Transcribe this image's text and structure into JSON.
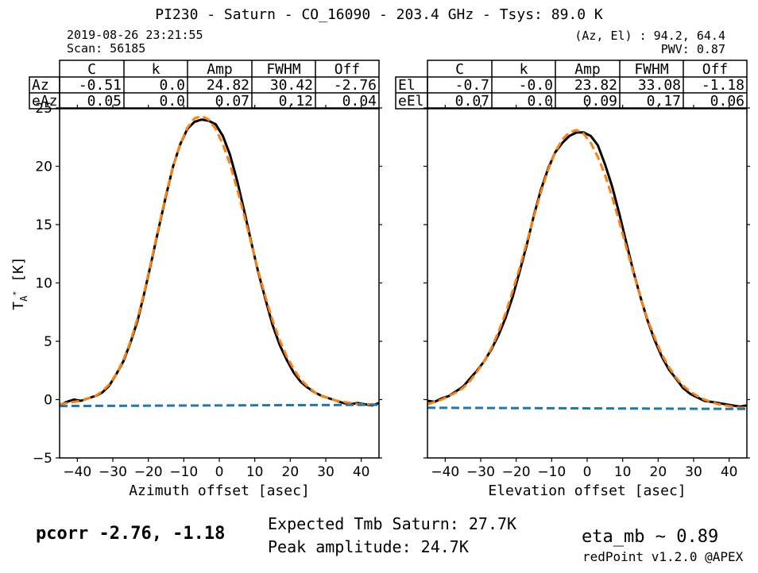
{
  "header": {
    "title": "PI230 - Saturn - CO_16090 - 203.4 GHz - Tsys: 89.0 K",
    "date": "2019-08-26 23:21:55",
    "scan": "Scan: 56185",
    "azel": "(Az, El) : 94.2, 64.4",
    "pwv": "PWV: 0.87"
  },
  "footer": {
    "pcorr": "pcorr -2.76, -1.18",
    "expected_tmb": "Expected Tmb Saturn: 27.7K",
    "peak_amplitude": "Peak amplitude: 24.7K",
    "eta_mb": "eta_mb ~ 0.89",
    "version": "redPoint v1.2.0 @APEX"
  },
  "ylabel_main": "T",
  "ylabel_sub": "A",
  "ylabel_sup": "*",
  "ylabel_unit": "[K]",
  "tables": [
    {
      "columns": [
        "C",
        "k",
        "Amp",
        "FWHM",
        "Off"
      ],
      "rows": [
        {
          "label": "Az",
          "values": [
            "-0.51",
            "0.0",
            "24.82",
            "30.42",
            "-2.76"
          ]
        },
        {
          "label": "eAz",
          "values": [
            "0.05",
            "0.0",
            "0.07",
            "0.12",
            "0.04"
          ]
        }
      ]
    },
    {
      "columns": [
        "C",
        "k",
        "Amp",
        "FWHM",
        "Off"
      ],
      "rows": [
        {
          "label": "El",
          "values": [
            "-0.7",
            "-0.0",
            "23.82",
            "33.08",
            "-1.18"
          ]
        },
        {
          "label": "eEl",
          "values": [
            "0.07",
            "0.0",
            "0.09",
            "0.17",
            "0.06"
          ]
        }
      ]
    }
  ],
  "chart_data": [
    {
      "type": "line",
      "xlabel": "Azimuth offset [asec]",
      "ylabel": "T_A* [K]",
      "xlim": [
        -45,
        45
      ],
      "ylim": [
        -5,
        25
      ],
      "xticks": [
        -40,
        -30,
        -20,
        -10,
        0,
        10,
        20,
        30,
        40
      ],
      "yticks": [
        -5,
        0,
        5,
        10,
        15,
        20,
        25
      ],
      "colors": {
        "data": "#000000",
        "fit": "#ff7f0e",
        "baseline": "#1f77b4"
      },
      "series": [
        {
          "role": "data",
          "style": "solid",
          "x": [
            -45,
            -43,
            -41,
            -39,
            -37,
            -35,
            -33,
            -31,
            -29,
            -27,
            -25,
            -23,
            -21,
            -19,
            -17,
            -15,
            -13,
            -11,
            -9,
            -7,
            -5,
            -3,
            -1,
            1,
            3,
            5,
            7,
            9,
            11,
            13,
            15,
            17,
            19,
            21,
            23,
            25,
            27,
            29,
            31,
            33,
            35,
            37,
            39,
            41,
            43,
            45
          ],
          "y": [
            -0.5,
            -0.2,
            0.0,
            -0.1,
            0.1,
            0.3,
            0.6,
            1.2,
            2.2,
            3.3,
            4.9,
            6.8,
            9.3,
            12.0,
            14.8,
            17.5,
            20.0,
            21.9,
            23.2,
            23.8,
            24.0,
            23.9,
            23.6,
            22.6,
            21.0,
            18.8,
            16.2,
            13.5,
            10.9,
            8.6,
            6.4,
            4.7,
            3.4,
            2.3,
            1.5,
            1.0,
            0.6,
            0.3,
            0.1,
            -0.1,
            -0.3,
            -0.4,
            -0.3,
            -0.4,
            -0.5,
            -0.3
          ]
        },
        {
          "role": "fit",
          "style": "dashed",
          "x": [
            -45,
            -43,
            -41,
            -39,
            -37,
            -35,
            -33,
            -31,
            -29,
            -27,
            -25,
            -23,
            -21,
            -19,
            -17,
            -15,
            -13,
            -11,
            -9,
            -7,
            -5,
            -3,
            -1,
            1,
            3,
            5,
            7,
            9,
            11,
            13,
            15,
            17,
            19,
            21,
            23,
            25,
            27,
            29,
            31,
            33,
            35,
            37,
            39,
            41,
            43,
            45
          ],
          "y": [
            -0.4,
            -0.3,
            -0.2,
            -0.1,
            0.1,
            0.3,
            0.7,
            1.3,
            2.2,
            3.4,
            5.0,
            7.0,
            9.4,
            12.1,
            14.9,
            17.6,
            20.0,
            21.9,
            23.3,
            24.1,
            24.3,
            24.0,
            23.2,
            21.9,
            20.2,
            18.1,
            15.8,
            13.4,
            11.0,
            8.8,
            6.8,
            5.1,
            3.7,
            2.6,
            1.7,
            1.1,
            0.6,
            0.3,
            0.1,
            -0.1,
            -0.2,
            -0.3,
            -0.4,
            -0.4,
            -0.4,
            -0.4
          ]
        },
        {
          "role": "baseline",
          "style": "dashed",
          "x": [
            -45,
            45
          ],
          "y": [
            -0.55,
            -0.45
          ]
        }
      ]
    },
    {
      "type": "line",
      "xlabel": "Elevation offset [asec]",
      "ylabel": "",
      "xlim": [
        -45,
        45
      ],
      "ylim": [
        -5,
        25
      ],
      "xticks": [
        -40,
        -30,
        -20,
        -10,
        0,
        10,
        20,
        30,
        40
      ],
      "yticks": [
        -5,
        0,
        5,
        10,
        15,
        20,
        25
      ],
      "colors": {
        "data": "#000000",
        "fit": "#ff7f0e",
        "baseline": "#1f77b4"
      },
      "series": [
        {
          "role": "data",
          "style": "solid",
          "x": [
            -45,
            -43,
            -41,
            -39,
            -37,
            -35,
            -33,
            -31,
            -29,
            -27,
            -25,
            -23,
            -21,
            -19,
            -17,
            -15,
            -13,
            -11,
            -9,
            -7,
            -5,
            -3,
            -1,
            1,
            3,
            5,
            7,
            9,
            11,
            13,
            15,
            17,
            19,
            21,
            23,
            25,
            27,
            29,
            31,
            33,
            35,
            37,
            39,
            41,
            43,
            45
          ],
          "y": [
            -0.1,
            -0.2,
            0.1,
            0.3,
            0.7,
            1.1,
            1.8,
            2.5,
            3.3,
            4.3,
            5.5,
            7.0,
            8.8,
            11.0,
            13.3,
            15.8,
            18.0,
            19.8,
            21.2,
            22.0,
            22.6,
            22.9,
            22.9,
            22.6,
            21.8,
            20.2,
            18.3,
            16.0,
            13.5,
            11.0,
            8.8,
            6.8,
            5.1,
            3.7,
            2.6,
            1.8,
            1.0,
            0.5,
            0.2,
            -0.1,
            -0.2,
            -0.3,
            -0.4,
            -0.5,
            -0.6,
            -0.5
          ]
        },
        {
          "role": "fit",
          "style": "dashed",
          "x": [
            -45,
            -43,
            -41,
            -39,
            -37,
            -35,
            -33,
            -31,
            -29,
            -27,
            -25,
            -23,
            -21,
            -19,
            -17,
            -15,
            -13,
            -11,
            -9,
            -7,
            -5,
            -3,
            -1,
            1,
            3,
            5,
            7,
            9,
            11,
            13,
            15,
            17,
            19,
            21,
            23,
            25,
            27,
            29,
            31,
            33,
            35,
            37,
            39,
            41,
            43,
            45
          ],
          "y": [
            -0.4,
            -0.2,
            0.0,
            0.3,
            0.6,
            1.0,
            1.6,
            2.4,
            3.3,
            4.4,
            5.8,
            7.4,
            9.3,
            11.3,
            13.5,
            15.7,
            17.8,
            19.7,
            21.2,
            22.3,
            22.9,
            23.1,
            22.8,
            22.0,
            20.8,
            19.3,
            17.4,
            15.3,
            13.1,
            10.9,
            8.8,
            6.9,
            5.3,
            3.9,
            2.8,
            1.9,
            1.2,
            0.7,
            0.3,
            0.0,
            -0.2,
            -0.4,
            -0.5,
            -0.6,
            -0.7,
            -0.7
          ]
        },
        {
          "role": "baseline",
          "style": "dashed",
          "x": [
            -45,
            45
          ],
          "y": [
            -0.7,
            -0.8
          ]
        }
      ]
    }
  ]
}
